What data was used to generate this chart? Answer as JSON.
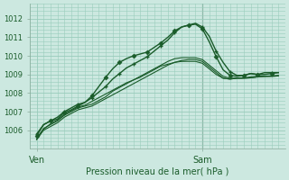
{
  "bg_color": "#cce8e0",
  "grid_color": "#99ccbb",
  "line_color": "#1a5c2a",
  "xlabel": "Pression niveau de la mer( hPa )",
  "x_ticks": [
    0,
    24
  ],
  "x_tick_labels": [
    "Ven",
    "Sam"
  ],
  "ylim": [
    1005.2,
    1012.3
  ],
  "y_ticks": [
    1006,
    1007,
    1008,
    1009,
    1010,
    1011,
    1012
  ],
  "xlim": [
    -1,
    36
  ],
  "vline_x": 24,
  "series": [
    [
      1005.7,
      1006.3,
      1006.5,
      1006.6,
      1006.95,
      1007.1,
      1007.3,
      1007.5,
      1007.85,
      1008.35,
      1008.85,
      1009.3,
      1009.65,
      1009.85,
      1010.0,
      1010.1,
      1010.2,
      1010.45,
      1010.7,
      1011.0,
      1011.35,
      1011.55,
      1011.65,
      1011.7,
      1011.45,
      1010.75,
      1009.95,
      1009.25,
      1008.95,
      1008.9,
      1008.95,
      1009.05,
      1009.0,
      1009.0,
      1009.05,
      1009.1
    ],
    [
      1005.8,
      1006.3,
      1006.5,
      1006.7,
      1007.0,
      1007.2,
      1007.4,
      1007.5,
      1007.75,
      1008.05,
      1008.35,
      1008.75,
      1009.05,
      1009.35,
      1009.55,
      1009.75,
      1009.95,
      1010.25,
      1010.55,
      1010.85,
      1011.25,
      1011.55,
      1011.65,
      1011.75,
      1011.55,
      1011.05,
      1010.25,
      1009.65,
      1009.15,
      1008.95,
      1008.95,
      1009.05,
      1009.0,
      1009.1,
      1009.1,
      1009.1
    ],
    [
      1005.5,
      1006.1,
      1006.3,
      1006.5,
      1006.8,
      1007.0,
      1007.2,
      1007.3,
      1007.4,
      1007.6,
      1007.8,
      1008.1,
      1008.3,
      1008.5,
      1008.7,
      1008.9,
      1009.1,
      1009.3,
      1009.5,
      1009.7,
      1009.85,
      1009.9,
      1009.9,
      1009.9,
      1009.8,
      1009.5,
      1009.2,
      1008.9,
      1008.8,
      1008.8,
      1008.82,
      1008.87,
      1008.9,
      1008.9,
      1008.92,
      1008.95
    ],
    [
      1005.5,
      1006.0,
      1006.2,
      1006.4,
      1006.7,
      1006.9,
      1007.1,
      1007.2,
      1007.3,
      1007.5,
      1007.7,
      1007.9,
      1008.1,
      1008.3,
      1008.5,
      1008.7,
      1008.9,
      1009.1,
      1009.3,
      1009.5,
      1009.65,
      1009.75,
      1009.8,
      1009.8,
      1009.7,
      1009.4,
      1009.1,
      1008.8,
      1008.75,
      1008.8,
      1008.8,
      1008.82,
      1008.87,
      1008.9,
      1008.9,
      1008.92
    ],
    [
      1005.6,
      1006.05,
      1006.35,
      1006.55,
      1006.85,
      1007.05,
      1007.25,
      1007.35,
      1007.55,
      1007.75,
      1007.95,
      1008.15,
      1008.35,
      1008.55,
      1008.7,
      1008.85,
      1009.05,
      1009.25,
      1009.45,
      1009.55,
      1009.65,
      1009.7,
      1009.7,
      1009.7,
      1009.6,
      1009.3,
      1009.0,
      1008.8,
      1008.75,
      1008.8,
      1008.8,
      1008.82,
      1008.87,
      1008.9,
      1008.9,
      1008.92
    ]
  ]
}
